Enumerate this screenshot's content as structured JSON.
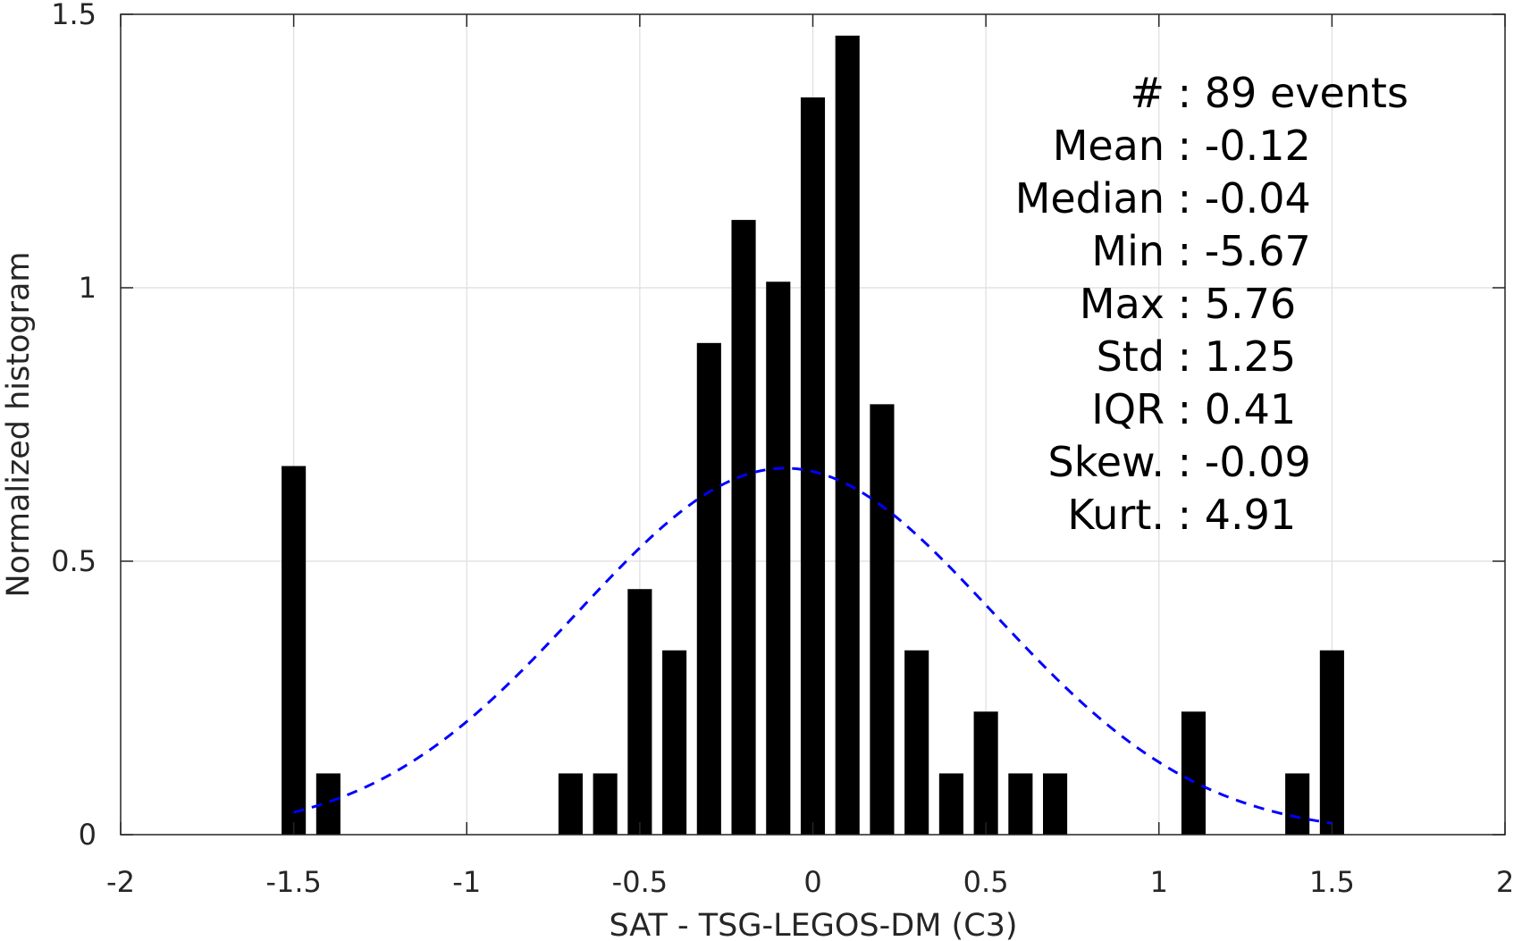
{
  "chart_data": {
    "type": "bar",
    "title": "",
    "xlabel": "SAT - TSG-LEGOS-DM (C3)",
    "ylabel": "Normalized histogram",
    "xlim": [
      -2,
      2
    ],
    "ylim": [
      0,
      1.5
    ],
    "xticks": [
      -2,
      -1.5,
      -1,
      -0.5,
      0,
      0.5,
      1,
      1.5,
      2
    ],
    "xtick_labels": [
      "-2",
      "-1.5",
      "-1",
      "-0.5",
      "0",
      "0.5",
      "1",
      "1.5",
      "2"
    ],
    "yticks": [
      0,
      0.5,
      1,
      1.5
    ],
    "ytick_labels": [
      "0",
      "0.5",
      "1",
      "1.5"
    ],
    "grid": true,
    "bar_color": "#000000",
    "bar_width": 0.07,
    "bars": {
      "x": [
        -1.5,
        -1.4,
        -0.7,
        -0.6,
        -0.5,
        -0.4,
        -0.3,
        -0.2,
        -0.1,
        0.0,
        0.1,
        0.2,
        0.3,
        0.4,
        0.5,
        0.6,
        0.7,
        1.1,
        1.4,
        1.5
      ],
      "values": [
        0.674,
        0.112,
        0.112,
        0.112,
        0.449,
        0.337,
        0.899,
        1.124,
        1.011,
        1.348,
        1.461,
        0.787,
        0.337,
        0.112,
        0.225,
        0.112,
        0.112,
        0.225,
        0.112,
        0.337
      ]
    },
    "fit_curve": {
      "style": "dashed",
      "color": "#0000ff",
      "mean": -0.08,
      "std": 0.6,
      "amplitude": 0.67,
      "x_range": [
        -1.5,
        1.5
      ]
    },
    "annotations": [
      "#  : 89 events",
      "Mean : -0.12",
      "Median : -0.04",
      "Min : -5.67",
      "Max : 5.76",
      "Std : 1.25",
      "IQR : 0.41",
      "Skew. : -0.09",
      "Kurt. : 4.91"
    ]
  }
}
